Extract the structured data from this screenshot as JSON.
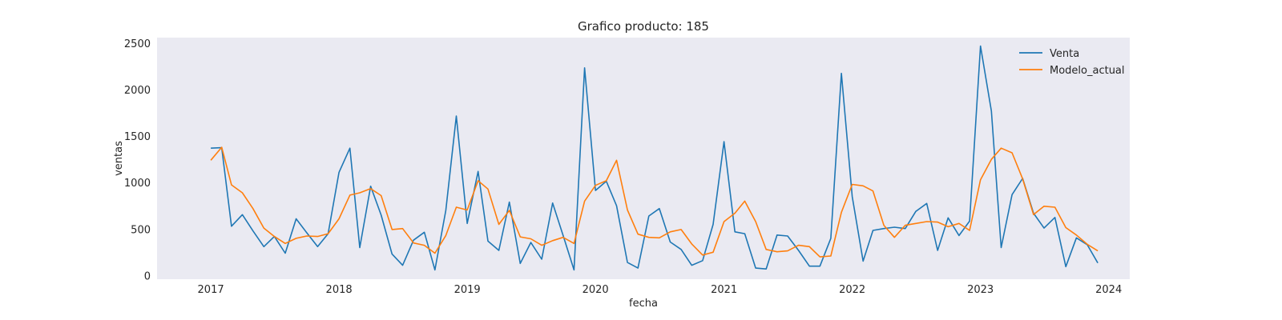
{
  "chart_data": {
    "type": "line",
    "title": "Grafico producto: 185",
    "xlabel": "fecha",
    "ylabel": "ventas",
    "xlim": [
      "2016-08-01",
      "2024-03-01"
    ],
    "ylim": [
      -40,
      2560
    ],
    "x_ticks": [
      {
        "date": "2017-01-01",
        "label": "2017"
      },
      {
        "date": "2018-01-01",
        "label": "2018"
      },
      {
        "date": "2019-01-01",
        "label": "2019"
      },
      {
        "date": "2020-01-01",
        "label": "2020"
      },
      {
        "date": "2021-01-01",
        "label": "2021"
      },
      {
        "date": "2022-01-01",
        "label": "2022"
      },
      {
        "date": "2023-01-01",
        "label": "2023"
      },
      {
        "date": "2024-01-01",
        "label": "2024"
      }
    ],
    "y_ticks": [
      0,
      500,
      1000,
      1500,
      2000,
      2500
    ],
    "grid": false,
    "legend_position": "top-right",
    "dates": [
      "2017-01",
      "2017-02",
      "2017-03",
      "2017-04",
      "2017-05",
      "2017-06",
      "2017-07",
      "2017-08",
      "2017-09",
      "2017-10",
      "2017-11",
      "2017-12",
      "2018-01",
      "2018-02",
      "2018-03",
      "2018-04",
      "2018-05",
      "2018-06",
      "2018-07",
      "2018-08",
      "2018-09",
      "2018-10",
      "2018-11",
      "2018-12",
      "2019-01",
      "2019-02",
      "2019-03",
      "2019-04",
      "2019-05",
      "2019-06",
      "2019-07",
      "2019-08",
      "2019-09",
      "2019-10",
      "2019-11",
      "2019-12",
      "2020-01",
      "2020-02",
      "2020-03",
      "2020-04",
      "2020-05",
      "2020-06",
      "2020-07",
      "2020-08",
      "2020-09",
      "2020-10",
      "2020-11",
      "2020-12",
      "2021-01",
      "2021-02",
      "2021-03",
      "2021-04",
      "2021-05",
      "2021-06",
      "2021-07",
      "2021-08",
      "2021-09",
      "2021-10",
      "2021-11",
      "2021-12",
      "2022-01",
      "2022-02",
      "2022-03",
      "2022-04",
      "2022-05",
      "2022-06",
      "2022-07",
      "2022-08",
      "2022-09",
      "2022-10",
      "2022-11",
      "2022-12",
      "2023-01",
      "2023-02",
      "2023-03",
      "2023-04",
      "2023-05",
      "2023-06",
      "2023-07",
      "2023-08",
      "2023-09",
      "2023-10",
      "2023-11",
      "2023-12"
    ],
    "series": [
      {
        "name": "Venta",
        "color": "#1f77b4",
        "values": [
          1370,
          1375,
          530,
          655,
          480,
          310,
          420,
          240,
          610,
          460,
          310,
          450,
          1110,
          1370,
          300,
          960,
          650,
          230,
          110,
          380,
          465,
          60,
          700,
          1715,
          560,
          1120,
          370,
          270,
          790,
          130,
          355,
          175,
          780,
          430,
          60,
          2235,
          915,
          1015,
          750,
          140,
          80,
          640,
          720,
          360,
          280,
          110,
          160,
          550,
          1440,
          470,
          450,
          80,
          70,
          435,
          425,
          270,
          100,
          100,
          400,
          2175,
          850,
          155,
          485,
          505,
          520,
          505,
          690,
          775,
          270,
          620,
          430,
          585,
          2470,
          1770,
          300,
          870,
          1045,
          670,
          510,
          625,
          95,
          405,
          330,
          135
        ]
      },
      {
        "name": "Modelo_actual",
        "color": "#ff7f0e",
        "values": [
          1240,
          1380,
          975,
          890,
          720,
          510,
          420,
          345,
          400,
          425,
          420,
          450,
          610,
          865,
          890,
          935,
          860,
          495,
          505,
          350,
          325,
          240,
          430,
          735,
          705,
          1020,
          930,
          550,
          700,
          415,
          395,
          325,
          375,
          410,
          345,
          800,
          970,
          1020,
          1240,
          705,
          445,
          410,
          405,
          470,
          495,
          340,
          220,
          250,
          580,
          670,
          800,
          580,
          280,
          255,
          265,
          325,
          310,
          200,
          210,
          680,
          980,
          965,
          910,
          540,
          410,
          540,
          560,
          580,
          575,
          525,
          560,
          485,
          1030,
          1250,
          1370,
          1320,
          1040,
          655,
          745,
          735,
          515,
          435,
          335,
          265
        ]
      }
    ]
  }
}
